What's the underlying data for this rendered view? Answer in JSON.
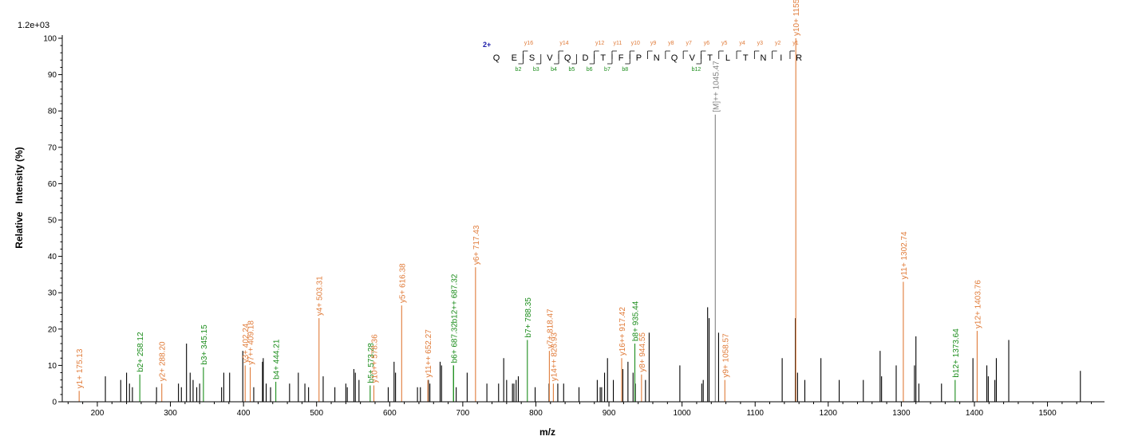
{
  "chart_data": {
    "type": "bar",
    "scale_label": "1.2e+03",
    "xlabel": "m/z",
    "ylabel": "Relative   Intensity (%)",
    "xlim": [
      152,
      1578
    ],
    "ylim": [
      0,
      100
    ],
    "xticks": [
      200,
      300,
      400,
      500,
      600,
      700,
      800,
      900,
      1000,
      1100,
      1200,
      1300,
      1400,
      1500
    ],
    "yticks": [
      0,
      10,
      20,
      30,
      40,
      50,
      60,
      70,
      80,
      90,
      100
    ],
    "colors": {
      "y_ion": "#e07b39",
      "b_ion": "#1a8c1a",
      "precursor": "#808080",
      "unassigned": "#000000",
      "charge": "#1a1aa8"
    },
    "unassigned_peaks": [
      {
        "mz": 211,
        "i": 7
      },
      {
        "mz": 232,
        "i": 6
      },
      {
        "mz": 240,
        "i": 8
      },
      {
        "mz": 244,
        "i": 5
      },
      {
        "mz": 248,
        "i": 4
      },
      {
        "mz": 281,
        "i": 4
      },
      {
        "mz": 311,
        "i": 5
      },
      {
        "mz": 315,
        "i": 4
      },
      {
        "mz": 322,
        "i": 16
      },
      {
        "mz": 327,
        "i": 8
      },
      {
        "mz": 331,
        "i": 6
      },
      {
        "mz": 336,
        "i": 4
      },
      {
        "mz": 340,
        "i": 5
      },
      {
        "mz": 370,
        "i": 4
      },
      {
        "mz": 373,
        "i": 8
      },
      {
        "mz": 381,
        "i": 8
      },
      {
        "mz": 399,
        "i": 14
      },
      {
        "mz": 414,
        "i": 4
      },
      {
        "mz": 426,
        "i": 11
      },
      {
        "mz": 427,
        "i": 12
      },
      {
        "mz": 431,
        "i": 5
      },
      {
        "mz": 437,
        "i": 4
      },
      {
        "mz": 463,
        "i": 5
      },
      {
        "mz": 475,
        "i": 8
      },
      {
        "mz": 484,
        "i": 5
      },
      {
        "mz": 489,
        "i": 4
      },
      {
        "mz": 509,
        "i": 7
      },
      {
        "mz": 525,
        "i": 4
      },
      {
        "mz": 540,
        "i": 5
      },
      {
        "mz": 542,
        "i": 4
      },
      {
        "mz": 551,
        "i": 9
      },
      {
        "mz": 553,
        "i": 8
      },
      {
        "mz": 558,
        "i": 6
      },
      {
        "mz": 598,
        "i": 4
      },
      {
        "mz": 606,
        "i": 11
      },
      {
        "mz": 608,
        "i": 8
      },
      {
        "mz": 638,
        "i": 4
      },
      {
        "mz": 642,
        "i": 4
      },
      {
        "mz": 653,
        "i": 6
      },
      {
        "mz": 655,
        "i": 5
      },
      {
        "mz": 669,
        "i": 11
      },
      {
        "mz": 671,
        "i": 10
      },
      {
        "mz": 691,
        "i": 4
      },
      {
        "mz": 706,
        "i": 8
      },
      {
        "mz": 733,
        "i": 5
      },
      {
        "mz": 749,
        "i": 5
      },
      {
        "mz": 756,
        "i": 12
      },
      {
        "mz": 760,
        "i": 6
      },
      {
        "mz": 768,
        "i": 5
      },
      {
        "mz": 770,
        "i": 5
      },
      {
        "mz": 773,
        "i": 6
      },
      {
        "mz": 776,
        "i": 7
      },
      {
        "mz": 799,
        "i": 4
      },
      {
        "mz": 818,
        "i": 5
      },
      {
        "mz": 830,
        "i": 5
      },
      {
        "mz": 838,
        "i": 5
      },
      {
        "mz": 859,
        "i": 4
      },
      {
        "mz": 884,
        "i": 6
      },
      {
        "mz": 888,
        "i": 4
      },
      {
        "mz": 890,
        "i": 4
      },
      {
        "mz": 894,
        "i": 8
      },
      {
        "mz": 898,
        "i": 12
      },
      {
        "mz": 906,
        "i": 6
      },
      {
        "mz": 919,
        "i": 9
      },
      {
        "mz": 926,
        "i": 11
      },
      {
        "mz": 933,
        "i": 8
      },
      {
        "mz": 936,
        "i": 5
      },
      {
        "mz": 950,
        "i": 6
      },
      {
        "mz": 955,
        "i": 19
      },
      {
        "mz": 997,
        "i": 10
      },
      {
        "mz": 1027,
        "i": 5
      },
      {
        "mz": 1029,
        "i": 6
      },
      {
        "mz": 1035,
        "i": 26
      },
      {
        "mz": 1037,
        "i": 23
      },
      {
        "mz": 1050,
        "i": 19
      },
      {
        "mz": 1137,
        "i": 12
      },
      {
        "mz": 1155,
        "i": 23
      },
      {
        "mz": 1158,
        "i": 8
      },
      {
        "mz": 1168,
        "i": 6
      },
      {
        "mz": 1190,
        "i": 12
      },
      {
        "mz": 1215,
        "i": 6
      },
      {
        "mz": 1248,
        "i": 6
      },
      {
        "mz": 1271,
        "i": 14
      },
      {
        "mz": 1273,
        "i": 7
      },
      {
        "mz": 1293,
        "i": 10
      },
      {
        "mz": 1318,
        "i": 10
      },
      {
        "mz": 1320,
        "i": 18
      },
      {
        "mz": 1324,
        "i": 5
      },
      {
        "mz": 1355,
        "i": 5
      },
      {
        "mz": 1398,
        "i": 12
      },
      {
        "mz": 1417,
        "i": 10
      },
      {
        "mz": 1419,
        "i": 7
      },
      {
        "mz": 1428,
        "i": 6
      },
      {
        "mz": 1430,
        "i": 12
      },
      {
        "mz": 1447,
        "i": 17
      },
      {
        "mz": 1545,
        "i": 8.5
      }
    ],
    "assigned_peaks": [
      {
        "mz": 175.13,
        "i": 3,
        "label": "y1+ 175.13",
        "ion": "y"
      },
      {
        "mz": 258.12,
        "i": 7.5,
        "label": "b2+ 258.12",
        "ion": "b"
      },
      {
        "mz": 288.2,
        "i": 5,
        "label": "y2+ 288.20",
        "ion": "y"
      },
      {
        "mz": 345.15,
        "i": 9.5,
        "label": "b3+ 345.15",
        "ion": "b"
      },
      {
        "mz": 402.24,
        "i": 10,
        "label": "y3+ 402.24",
        "ion": "y"
      },
      {
        "mz": 409.18,
        "i": 9.5,
        "label": "y7++ 409.18",
        "ion": "y"
      },
      {
        "mz": 444.21,
        "i": 5.5,
        "label": "b4+ 444.21",
        "ion": "b"
      },
      {
        "mz": 503.31,
        "i": 23,
        "label": "y4+ 503.31",
        "ion": "y"
      },
      {
        "mz": 573.28,
        "i": 4.5,
        "label": "b5+ 573.28",
        "ion": "b"
      },
      {
        "mz": 578.36,
        "i": 4.5,
        "label": "y10++ 578.36",
        "ion": "y"
      },
      {
        "mz": 616.38,
        "i": 26.5,
        "label": "y5+ 616.38",
        "ion": "y"
      },
      {
        "mz": 652.27,
        "i": 6,
        "label": "y11++ 652.27",
        "ion": "y"
      },
      {
        "mz": 687.32,
        "i": 10,
        "label": "b6+ 687.32",
        "ion": "b"
      },
      {
        "mz": 687.32,
        "i": 10,
        "label": "b12++ 687.32",
        "ion": "b"
      },
      {
        "mz": 717.43,
        "i": 37,
        "label": "y6+ 717.43",
        "ion": "y"
      },
      {
        "mz": 788.35,
        "i": 17,
        "label": "b7+ 788.35",
        "ion": "b"
      },
      {
        "mz": 818.47,
        "i": 14,
        "label": "y7+ 818.47",
        "ion": "y"
      },
      {
        "mz": 823.93,
        "i": 5,
        "label": "y14++ 823.93",
        "ion": "y"
      },
      {
        "mz": 917.42,
        "i": 12,
        "label": "y16++ 917.42",
        "ion": "y"
      },
      {
        "mz": 935.44,
        "i": 16,
        "label": "b8+ 935.44",
        "ion": "b"
      },
      {
        "mz": 944.55,
        "i": 7.5,
        "label": "y8+ 944.55",
        "ion": "y"
      },
      {
        "mz": 1045.47,
        "i": 79,
        "label": "[M]++ 1045.47",
        "ion": "M"
      },
      {
        "mz": 1058.57,
        "i": 6,
        "label": "y9+ 1058.57",
        "ion": "y"
      },
      {
        "mz": 1155.66,
        "i": 100,
        "label": "y10+ 1155.66",
        "ion": "y"
      },
      {
        "mz": 1302.74,
        "i": 33,
        "label": "y11+ 1302.74",
        "ion": "y"
      },
      {
        "mz": 1373.64,
        "i": 6,
        "label": "b12+ 1373.64",
        "ion": "b"
      },
      {
        "mz": 1403.76,
        "i": 19.5,
        "label": "y12+ 1403.76",
        "ion": "y"
      }
    ],
    "sequence": {
      "charge": "2+",
      "residues": [
        "Q",
        "E",
        "S",
        "V",
        "Q",
        "D",
        "T",
        "F",
        "P",
        "N",
        "Q",
        "V",
        "T",
        "L",
        "T",
        "N",
        "I",
        "R"
      ],
      "y_labels": [
        {
          "after": 2,
          "text": "y16"
        },
        {
          "after": 4,
          "text": "y14"
        },
        {
          "after": 6,
          "text": "y12"
        },
        {
          "after": 7,
          "text": "y11"
        },
        {
          "after": 8,
          "text": "y10"
        },
        {
          "after": 9,
          "text": "y9"
        },
        {
          "after": 10,
          "text": "y8"
        },
        {
          "after": 11,
          "text": "y7"
        },
        {
          "after": 12,
          "text": "y6"
        },
        {
          "after": 13,
          "text": "y5"
        },
        {
          "after": 14,
          "text": "y4"
        },
        {
          "after": 15,
          "text": "y3"
        },
        {
          "after": 16,
          "text": "y2"
        },
        {
          "after": 17,
          "text": "y1"
        }
      ],
      "b_labels": [
        {
          "after": 2,
          "text": "b2"
        },
        {
          "after": 3,
          "text": "b3"
        },
        {
          "after": 4,
          "text": "b4"
        },
        {
          "after": 5,
          "text": "b5"
        },
        {
          "after": 6,
          "text": "b6"
        },
        {
          "after": 7,
          "text": "b7"
        },
        {
          "after": 8,
          "text": "b8"
        },
        {
          "after": 12,
          "text": "b12"
        }
      ]
    }
  }
}
